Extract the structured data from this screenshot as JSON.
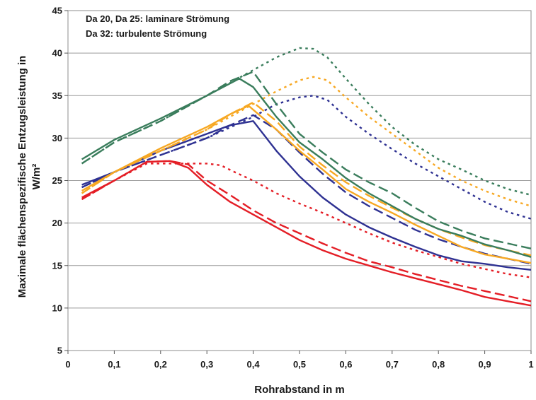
{
  "chart_data": {
    "type": "line",
    "title": "",
    "annotations": [
      "Da 20, Da 25: laminare Strömung",
      "Da 32: turbulente Strömung"
    ],
    "xlabel": "Rohrabstand in m",
    "ylabel_lines": [
      "Maximale flächenspezifische Entzugsleistung in",
      "W/m²"
    ],
    "xlim": [
      0,
      1
    ],
    "ylim": [
      5,
      45
    ],
    "xticks": [
      0,
      0.1,
      0.2,
      0.3,
      0.4,
      0.5,
      0.6,
      0.7,
      0.8,
      0.9,
      1
    ],
    "xtick_labels": [
      "0",
      "0,1",
      "0,2",
      "0,3",
      "0,4",
      "0,5",
      "0,6",
      "0,7",
      "0,8",
      "0,9",
      "1"
    ],
    "yticks": [
      5,
      10,
      15,
      20,
      25,
      30,
      35,
      40,
      45
    ],
    "ytick_labels": [
      "5",
      "10",
      "15",
      "20",
      "25",
      "30",
      "35",
      "40",
      "45"
    ],
    "grid": "horizontal",
    "legend": "none",
    "series": [
      {
        "color": "#e41e26",
        "style": "solid",
        "x": [
          0.03,
          0.1,
          0.17,
          0.22,
          0.26,
          0.3,
          0.35,
          0.4,
          0.45,
          0.5,
          0.55,
          0.6,
          0.65,
          0.7,
          0.75,
          0.8,
          0.85,
          0.9,
          0.95,
          1.0
        ],
        "y": [
          23,
          25,
          27.2,
          27.3,
          26.5,
          24.5,
          22.5,
          21,
          19.5,
          18,
          16.8,
          15.8,
          15,
          14.2,
          13.5,
          12.8,
          12.1,
          11.3,
          10.8,
          10.3
        ]
      },
      {
        "color": "#e41e26",
        "style": "dashed",
        "x": [
          0.03,
          0.1,
          0.17,
          0.22,
          0.26,
          0.3,
          0.35,
          0.4,
          0.45,
          0.5,
          0.55,
          0.6,
          0.65,
          0.7,
          0.75,
          0.8,
          0.85,
          0.9,
          0.95,
          1.0
        ],
        "y": [
          22.8,
          25,
          27.2,
          27.3,
          26.9,
          25,
          23.3,
          21.5,
          20,
          18.8,
          17.6,
          16.5,
          15.5,
          14.8,
          14,
          13.3,
          12.6,
          12,
          11.4,
          10.8
        ]
      },
      {
        "color": "#e41e26",
        "style": "dotted",
        "x": [
          0.03,
          0.1,
          0.17,
          0.22,
          0.26,
          0.3,
          0.33,
          0.36,
          0.4,
          0.45,
          0.5,
          0.55,
          0.6,
          0.65,
          0.7,
          0.75,
          0.8,
          0.85,
          0.9,
          0.95,
          1.0
        ],
        "y": [
          22.8,
          25,
          27,
          27,
          27,
          27,
          26.8,
          26,
          25,
          23.5,
          22.3,
          21.2,
          20,
          18.8,
          17.7,
          16.8,
          16,
          15.2,
          14.6,
          14,
          13.6
        ]
      },
      {
        "color": "#2e3192",
        "style": "solid",
        "x": [
          0.03,
          0.1,
          0.2,
          0.3,
          0.35,
          0.4,
          0.45,
          0.5,
          0.55,
          0.6,
          0.65,
          0.7,
          0.75,
          0.8,
          0.85,
          0.9,
          0.95,
          1.0
        ],
        "y": [
          24.5,
          26,
          28.5,
          30.5,
          31.5,
          32,
          28.5,
          25.5,
          23,
          21,
          19.5,
          18.3,
          17.2,
          16.2,
          15.5,
          15.2,
          14.8,
          14.5
        ]
      },
      {
        "color": "#2e3192",
        "style": "dashed",
        "x": [
          0.03,
          0.1,
          0.2,
          0.3,
          0.35,
          0.4,
          0.45,
          0.5,
          0.55,
          0.6,
          0.65,
          0.7,
          0.75,
          0.8,
          0.85,
          0.9,
          0.95,
          1.0
        ],
        "y": [
          24.2,
          26,
          28,
          30,
          31.5,
          32.7,
          31,
          28.3,
          25.8,
          23.6,
          22,
          20.6,
          19.2,
          18.1,
          17.2,
          16.4,
          15.8,
          15.2
        ]
      },
      {
        "color": "#2e3192",
        "style": "dotted",
        "x": [
          0.03,
          0.1,
          0.2,
          0.3,
          0.4,
          0.45,
          0.5,
          0.53,
          0.56,
          0.6,
          0.65,
          0.7,
          0.75,
          0.8,
          0.85,
          0.9,
          0.95,
          1.0
        ],
        "y": [
          24.2,
          26,
          28,
          30,
          32.5,
          34,
          34.8,
          35,
          34.5,
          32.5,
          30.5,
          28.7,
          27,
          25.5,
          24,
          22.5,
          21.3,
          20.5
        ]
      },
      {
        "color": "#f7a823",
        "style": "solid",
        "x": [
          0.03,
          0.1,
          0.2,
          0.3,
          0.35,
          0.39,
          0.45,
          0.5,
          0.55,
          0.6,
          0.65,
          0.7,
          0.75,
          0.8,
          0.85,
          0.9,
          0.95,
          1.0
        ],
        "y": [
          23.8,
          26,
          28.8,
          31.3,
          32.8,
          33.8,
          31,
          28.5,
          26.3,
          24,
          22.5,
          21.2,
          19.8,
          18.5,
          17.2,
          16.3,
          15.8,
          15.3
        ]
      },
      {
        "color": "#f7a823",
        "style": "dashed",
        "x": [
          0.03,
          0.1,
          0.2,
          0.3,
          0.35,
          0.4,
          0.45,
          0.5,
          0.55,
          0.6,
          0.65,
          0.7,
          0.75,
          0.8,
          0.85,
          0.9,
          0.95,
          1.0
        ],
        "y": [
          23.5,
          26,
          28.5,
          31,
          32.8,
          34.2,
          32,
          29,
          26.8,
          24.8,
          23.2,
          21.8,
          20.5,
          19.3,
          18.3,
          17.4,
          16.8,
          16.2
        ]
      },
      {
        "color": "#f7a823",
        "style": "dotted",
        "x": [
          0.03,
          0.1,
          0.2,
          0.3,
          0.4,
          0.45,
          0.5,
          0.53,
          0.56,
          0.6,
          0.65,
          0.7,
          0.75,
          0.8,
          0.85,
          0.9,
          0.95,
          1.0
        ],
        "y": [
          23.5,
          26,
          28.5,
          31,
          34,
          35.5,
          36.8,
          37.2,
          36.8,
          34.8,
          32.5,
          30.5,
          28.5,
          26.5,
          25,
          23.8,
          22.8,
          22
        ]
      },
      {
        "color": "#3a7d5c",
        "style": "solid",
        "x": [
          0.03,
          0.1,
          0.2,
          0.3,
          0.37,
          0.4,
          0.45,
          0.5,
          0.55,
          0.6,
          0.65,
          0.7,
          0.75,
          0.8,
          0.85,
          0.9,
          0.95,
          1.0
        ],
        "y": [
          27.5,
          29.8,
          32.3,
          35,
          37,
          36,
          32.5,
          29.5,
          27.5,
          25.3,
          23.5,
          22,
          20.5,
          19.3,
          18.5,
          17.5,
          16.8,
          16
        ]
      },
      {
        "color": "#3a7d5c",
        "style": "dashed",
        "x": [
          0.03,
          0.1,
          0.2,
          0.3,
          0.35,
          0.4,
          0.45,
          0.5,
          0.55,
          0.6,
          0.65,
          0.7,
          0.75,
          0.8,
          0.85,
          0.9,
          0.95,
          1.0
        ],
        "y": [
          27,
          29.5,
          32,
          35,
          36.7,
          37.8,
          34,
          30.5,
          28.3,
          26.3,
          24.8,
          23.5,
          21.8,
          20.2,
          19.1,
          18.2,
          17.6,
          17
        ]
      },
      {
        "color": "#3a7d5c",
        "style": "dotted",
        "x": [
          0.03,
          0.1,
          0.2,
          0.3,
          0.4,
          0.45,
          0.5,
          0.53,
          0.56,
          0.6,
          0.65,
          0.7,
          0.75,
          0.8,
          0.85,
          0.9,
          0.95,
          1.0
        ],
        "y": [
          27,
          29.5,
          32,
          35,
          38,
          39.5,
          40.6,
          40.5,
          39.5,
          37,
          34,
          31.3,
          29.2,
          27.5,
          26.3,
          25,
          24,
          23.3
        ]
      }
    ]
  }
}
